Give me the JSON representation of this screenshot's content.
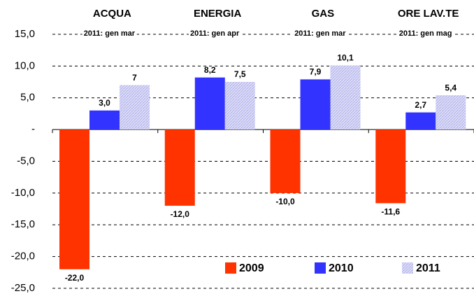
{
  "chart_data": {
    "type": "bar",
    "categories": [
      "ACQUA",
      "ENERGIA",
      "GAS",
      "ORE LAV.TE"
    ],
    "subtitles": [
      "2011: gen mar",
      "2011: gen apr",
      "2011: gen mar",
      "2011: gen mag"
    ],
    "series": [
      {
        "name": "2009",
        "color": "#ff3300",
        "values": [
          -22.0,
          -12.0,
          -10.0,
          -11.6
        ],
        "value_labels": [
          "-22,0",
          "-12,0",
          "-10,0",
          "-11,6"
        ]
      },
      {
        "name": "2010",
        "color": "#3333ff",
        "values": [
          3.0,
          8.2,
          7.9,
          2.7
        ],
        "value_labels": [
          "3,0",
          "8,2",
          "7,9",
          "2,7"
        ]
      },
      {
        "name": "2011",
        "color": "#c8c8f4",
        "values": [
          7,
          7.5,
          10.1,
          5.4
        ],
        "value_labels": [
          "7",
          "7,5",
          "10,1",
          "5,4"
        ]
      }
    ],
    "ylim": [
      -25,
      15
    ],
    "yticks": [
      {
        "value": 15,
        "label": "15,0"
      },
      {
        "value": 10,
        "label": "10,0"
      },
      {
        "value": 5,
        "label": "5,0"
      },
      {
        "value": 0,
        "label": "-"
      },
      {
        "value": -5,
        "label": "-5,0"
      },
      {
        "value": -10,
        "label": "-10,0"
      },
      {
        "value": -15,
        "label": "-15,0"
      },
      {
        "value": -20,
        "label": "-20,0"
      },
      {
        "value": -25,
        "label": "-25,0"
      }
    ],
    "grid": true,
    "legend": "bottom-right"
  }
}
